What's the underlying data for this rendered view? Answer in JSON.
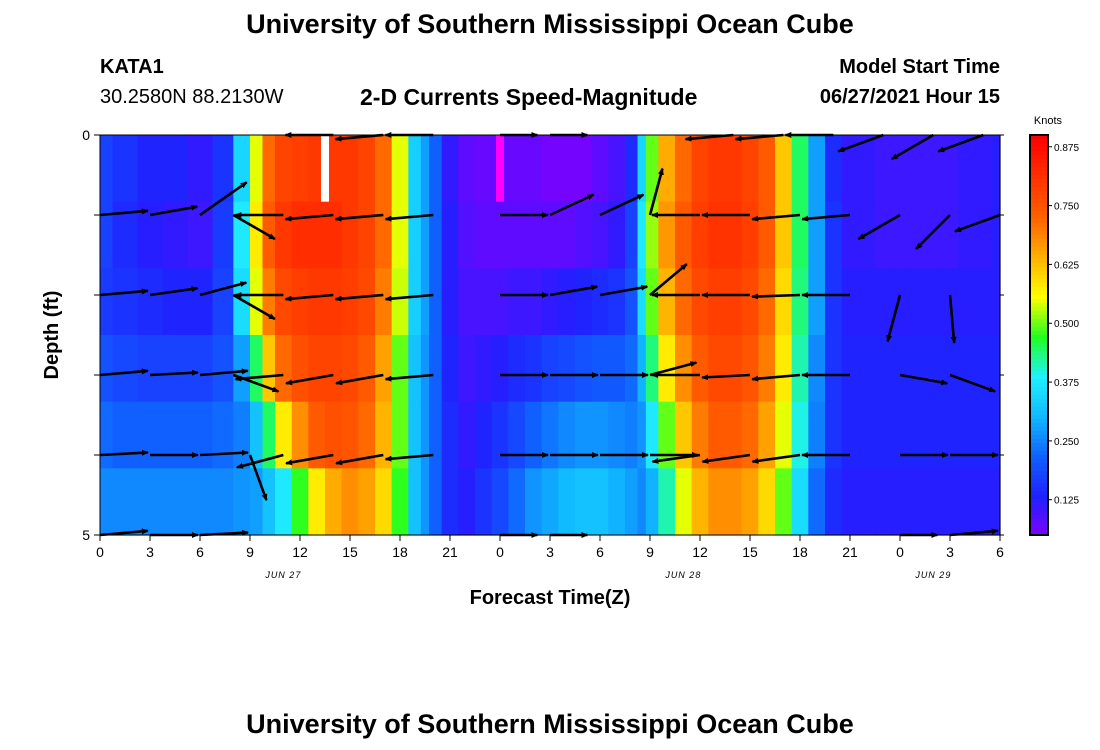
{
  "header": {
    "title": "University of Southern Mississippi Ocean Cube",
    "station_id": "KATA1",
    "coords": "30.2580N  88.2130W",
    "subtitle": "2-D Currents Speed-Magnitude",
    "model_label": "Model Start Time",
    "model_time": "06/27/2021 Hour 15"
  },
  "footer": {
    "title": "University of Southern Mississippi Ocean Cube"
  },
  "colors": {
    "colormap": [
      "#8000ff",
      "#2020ff",
      "#1060ff",
      "#10b8ff",
      "#20f0ff",
      "#20ff20",
      "#ffff00",
      "#ffb000",
      "#ff6000",
      "#ff3000",
      "#ff0000"
    ],
    "arrow": "#000000",
    "missing_white": "#ffffff",
    "missing_magenta": "#ff00ff"
  },
  "chart_data": {
    "type": "heatmap",
    "title": "2-D Currents Speed-Magnitude",
    "xlabel": "Forecast Time(Z)",
    "ylabel": "Depth (ft)",
    "units": "Knots",
    "xlim": [
      0,
      54
    ],
    "ylim": [
      0,
      5
    ],
    "x_tick_labels": [
      "0",
      "3",
      "6",
      "9",
      "12",
      "15",
      "18",
      "21",
      "0",
      "3",
      "6",
      "9",
      "12",
      "15",
      "18",
      "21",
      "0",
      "3",
      "6"
    ],
    "y_tick_labels": [
      "0",
      "5"
    ],
    "date_labels": [
      {
        "text": "JUN 27",
        "hour": 11
      },
      {
        "text": "JUN 28",
        "hour": 35
      },
      {
        "text": "JUN 29",
        "hour": 50
      }
    ],
    "colorbar_ticks": [
      "0.875",
      "0.750",
      "0.625",
      "0.500",
      "0.375",
      "0.250",
      "0.125"
    ],
    "colorbar_range": [
      0.05,
      0.9
    ],
    "hours": [
      0,
      1.5,
      3,
      4.5,
      6,
      7.5,
      8.5,
      9.5,
      10,
      11,
      12,
      13,
      14,
      15,
      16,
      17,
      18,
      19,
      19.5,
      20,
      21,
      22,
      23,
      24,
      25,
      26,
      27,
      28,
      29,
      30,
      31,
      32,
      32.5,
      33,
      34,
      35,
      36,
      37,
      38,
      39,
      40,
      41,
      42,
      43,
      44,
      45,
      46,
      47,
      48,
      49,
      50,
      51,
      52,
      53,
      54
    ],
    "depth_rows": [
      {
        "label": "row1",
        "speeds": [
          0.18,
          0.16,
          0.14,
          0.14,
          0.12,
          0.16,
          0.35,
          0.55,
          0.72,
          0.78,
          0.79,
          0.8,
          0.8,
          0.8,
          0.78,
          0.72,
          0.55,
          0.34,
          0.28,
          0.22,
          0.12,
          0.08,
          0.07,
          0.07,
          0.07,
          0.07,
          0.06,
          0.06,
          0.06,
          0.08,
          0.1,
          0.15,
          0.35,
          0.5,
          0.65,
          0.72,
          0.78,
          0.8,
          0.8,
          0.78,
          0.74,
          0.62,
          0.45,
          0.28,
          0.15,
          0.12,
          0.12,
          0.11,
          0.11,
          0.11,
          0.11,
          0.11,
          0.12,
          0.12,
          0.13
        ]
      },
      {
        "label": "row2",
        "speeds": [
          0.18,
          0.15,
          0.13,
          0.12,
          0.11,
          0.17,
          0.38,
          0.58,
          0.74,
          0.8,
          0.82,
          0.82,
          0.82,
          0.8,
          0.78,
          0.72,
          0.55,
          0.34,
          0.28,
          0.22,
          0.13,
          0.09,
          0.08,
          0.08,
          0.08,
          0.08,
          0.08,
          0.08,
          0.09,
          0.1,
          0.12,
          0.18,
          0.38,
          0.52,
          0.67,
          0.74,
          0.79,
          0.81,
          0.81,
          0.79,
          0.74,
          0.62,
          0.45,
          0.28,
          0.16,
          0.12,
          0.12,
          0.11,
          0.11,
          0.11,
          0.11,
          0.11,
          0.12,
          0.12,
          0.13
        ]
      },
      {
        "label": "row3",
        "speeds": [
          0.17,
          0.16,
          0.15,
          0.14,
          0.14,
          0.18,
          0.36,
          0.55,
          0.7,
          0.77,
          0.79,
          0.8,
          0.8,
          0.79,
          0.77,
          0.7,
          0.54,
          0.34,
          0.28,
          0.22,
          0.13,
          0.1,
          0.1,
          0.1,
          0.11,
          0.11,
          0.12,
          0.13,
          0.14,
          0.15,
          0.16,
          0.2,
          0.36,
          0.5,
          0.64,
          0.72,
          0.77,
          0.79,
          0.79,
          0.77,
          0.72,
          0.6,
          0.44,
          0.28,
          0.16,
          0.13,
          0.13,
          0.13,
          0.13,
          0.13,
          0.13,
          0.13,
          0.13,
          0.13,
          0.13
        ]
      },
      {
        "label": "row4",
        "speeds": [
          0.2,
          0.19,
          0.18,
          0.18,
          0.18,
          0.2,
          0.28,
          0.45,
          0.62,
          0.72,
          0.76,
          0.78,
          0.78,
          0.77,
          0.74,
          0.66,
          0.5,
          0.32,
          0.27,
          0.22,
          0.14,
          0.11,
          0.12,
          0.13,
          0.15,
          0.16,
          0.18,
          0.19,
          0.2,
          0.21,
          0.21,
          0.23,
          0.3,
          0.44,
          0.58,
          0.68,
          0.74,
          0.77,
          0.77,
          0.75,
          0.7,
          0.58,
          0.42,
          0.26,
          0.16,
          0.14,
          0.14,
          0.14,
          0.14,
          0.14,
          0.14,
          0.14,
          0.14,
          0.14,
          0.14
        ]
      },
      {
        "label": "row5",
        "speeds": [
          0.23,
          0.22,
          0.22,
          0.22,
          0.22,
          0.23,
          0.25,
          0.32,
          0.45,
          0.58,
          0.68,
          0.74,
          0.76,
          0.75,
          0.72,
          0.64,
          0.5,
          0.32,
          0.27,
          0.22,
          0.15,
          0.12,
          0.14,
          0.16,
          0.19,
          0.22,
          0.24,
          0.26,
          0.27,
          0.27,
          0.26,
          0.25,
          0.27,
          0.38,
          0.5,
          0.62,
          0.7,
          0.74,
          0.74,
          0.72,
          0.66,
          0.55,
          0.4,
          0.25,
          0.16,
          0.14,
          0.14,
          0.14,
          0.14,
          0.14,
          0.14,
          0.14,
          0.14,
          0.14,
          0.14
        ]
      },
      {
        "label": "row6",
        "speeds": [
          0.26,
          0.26,
          0.26,
          0.26,
          0.26,
          0.26,
          0.27,
          0.28,
          0.32,
          0.38,
          0.48,
          0.58,
          0.65,
          0.68,
          0.66,
          0.6,
          0.48,
          0.32,
          0.27,
          0.22,
          0.15,
          0.13,
          0.16,
          0.19,
          0.23,
          0.27,
          0.29,
          0.31,
          0.32,
          0.32,
          0.3,
          0.28,
          0.26,
          0.3,
          0.42,
          0.55,
          0.64,
          0.68,
          0.68,
          0.66,
          0.6,
          0.5,
          0.36,
          0.23,
          0.15,
          0.13,
          0.13,
          0.13,
          0.13,
          0.13,
          0.13,
          0.13,
          0.13,
          0.13,
          0.13
        ]
      }
    ],
    "missing_cells": [
      {
        "hour": 13.5,
        "row": 0,
        "color": "white"
      },
      {
        "hour": 24,
        "row": 0,
        "color": "magenta"
      }
    ],
    "vector_levels": [
      {
        "depth": 0,
        "arrows": [
          {
            "hour": 14,
            "angle": 180,
            "length": 0.32
          },
          {
            "hour": 17,
            "angle": 185,
            "length": 0.32
          },
          {
            "hour": 20,
            "angle": 180,
            "length": 0.32
          },
          {
            "hour": 24,
            "angle": 0,
            "length": 0.25
          },
          {
            "hour": 27,
            "angle": 0,
            "length": 0.25
          },
          {
            "hour": 38,
            "angle": 185,
            "length": 0.32
          },
          {
            "hour": 41,
            "angle": 185,
            "length": 0.32
          },
          {
            "hour": 44,
            "angle": 180,
            "length": 0.32
          },
          {
            "hour": 47,
            "angle": 200,
            "length": 0.32
          },
          {
            "hour": 50,
            "angle": 210,
            "length": 0.32
          },
          {
            "hour": 53,
            "angle": 200,
            "length": 0.32
          }
        ]
      },
      {
        "depth": 1,
        "arrows": [
          {
            "hour": 0,
            "angle": 5,
            "length": 0.32
          },
          {
            "hour": 3,
            "angle": 10,
            "length": 0.32
          },
          {
            "hour": 6,
            "angle": 35,
            "length": 0.38
          },
          {
            "hour": 8,
            "angle": 330,
            "length": 0.32
          },
          {
            "hour": 11,
            "angle": 180,
            "length": 0.32
          },
          {
            "hour": 14,
            "angle": 185,
            "length": 0.32
          },
          {
            "hour": 17,
            "angle": 185,
            "length": 0.32
          },
          {
            "hour": 20,
            "angle": 185,
            "length": 0.32
          },
          {
            "hour": 24,
            "angle": 0,
            "length": 0.32
          },
          {
            "hour": 27,
            "angle": 25,
            "length": 0.32
          },
          {
            "hour": 30,
            "angle": 25,
            "length": 0.32
          },
          {
            "hour": 33,
            "angle": 75,
            "length": 0.32
          },
          {
            "hour": 36,
            "angle": 180,
            "length": 0.32
          },
          {
            "hour": 39,
            "angle": 180,
            "length": 0.32
          },
          {
            "hour": 42,
            "angle": 185,
            "length": 0.32
          },
          {
            "hour": 45,
            "angle": 185,
            "length": 0.32
          },
          {
            "hour": 48,
            "angle": 210,
            "length": 0.32
          },
          {
            "hour": 51,
            "angle": 225,
            "length": 0.32
          },
          {
            "hour": 54,
            "angle": 200,
            "length": 0.32
          }
        ]
      },
      {
        "depth": 2,
        "arrows": [
          {
            "hour": 0,
            "angle": 5,
            "length": 0.32
          },
          {
            "hour": 3,
            "angle": 8,
            "length": 0.32
          },
          {
            "hour": 6,
            "angle": 15,
            "length": 0.32
          },
          {
            "hour": 8,
            "angle": 330,
            "length": 0.32
          },
          {
            "hour": 11,
            "angle": 180,
            "length": 0.32
          },
          {
            "hour": 14,
            "angle": 185,
            "length": 0.32
          },
          {
            "hour": 17,
            "angle": 185,
            "length": 0.32
          },
          {
            "hour": 20,
            "angle": 185,
            "length": 0.32
          },
          {
            "hour": 24,
            "angle": 0,
            "length": 0.32
          },
          {
            "hour": 27,
            "angle": 10,
            "length": 0.32
          },
          {
            "hour": 30,
            "angle": 10,
            "length": 0.32
          },
          {
            "hour": 33,
            "angle": 40,
            "length": 0.32
          },
          {
            "hour": 36,
            "angle": 180,
            "length": 0.32
          },
          {
            "hour": 39,
            "angle": 180,
            "length": 0.32
          },
          {
            "hour": 42,
            "angle": 182,
            "length": 0.32
          },
          {
            "hour": 45,
            "angle": 180,
            "length": 0.32
          },
          {
            "hour": 48,
            "angle": 255,
            "length": 0.32
          },
          {
            "hour": 51,
            "angle": 275,
            "length": 0.32
          }
        ]
      },
      {
        "depth": 3,
        "arrows": [
          {
            "hour": 0,
            "angle": 5,
            "length": 0.32
          },
          {
            "hour": 3,
            "angle": 3,
            "length": 0.32
          },
          {
            "hour": 6,
            "angle": 5,
            "length": 0.32
          },
          {
            "hour": 8,
            "angle": 340,
            "length": 0.32
          },
          {
            "hour": 11,
            "angle": 185,
            "length": 0.32
          },
          {
            "hour": 14,
            "angle": 190,
            "length": 0.32
          },
          {
            "hour": 17,
            "angle": 190,
            "length": 0.32
          },
          {
            "hour": 20,
            "angle": 185,
            "length": 0.32
          },
          {
            "hour": 24,
            "angle": 0,
            "length": 0.32
          },
          {
            "hour": 27,
            "angle": 0,
            "length": 0.32
          },
          {
            "hour": 30,
            "angle": 0,
            "length": 0.32
          },
          {
            "hour": 33,
            "angle": 15,
            "length": 0.32
          },
          {
            "hour": 36,
            "angle": 180,
            "length": 0.32
          },
          {
            "hour": 39,
            "angle": 183,
            "length": 0.32
          },
          {
            "hour": 42,
            "angle": 185,
            "length": 0.32
          },
          {
            "hour": 45,
            "angle": 180,
            "length": 0.32
          },
          {
            "hour": 48,
            "angle": 350,
            "length": 0.32
          },
          {
            "hour": 51,
            "angle": 340,
            "length": 0.32
          }
        ]
      },
      {
        "depth": 4,
        "arrows": [
          {
            "hour": 0,
            "angle": 3,
            "length": 0.32
          },
          {
            "hour": 3,
            "angle": 0,
            "length": 0.32
          },
          {
            "hour": 6,
            "angle": 3,
            "length": 0.32
          },
          {
            "hour": 9,
            "angle": 290,
            "length": 0.32
          },
          {
            "hour": 11,
            "angle": 195,
            "length": 0.32
          },
          {
            "hour": 14,
            "angle": 190,
            "length": 0.32
          },
          {
            "hour": 17,
            "angle": 190,
            "length": 0.32
          },
          {
            "hour": 20,
            "angle": 185,
            "length": 0.32
          },
          {
            "hour": 24,
            "angle": 0,
            "length": 0.32
          },
          {
            "hour": 27,
            "angle": 0,
            "length": 0.32
          },
          {
            "hour": 30,
            "angle": 0,
            "length": 0.32
          },
          {
            "hour": 33,
            "angle": 0,
            "length": 0.32
          },
          {
            "hour": 36,
            "angle": 188,
            "length": 0.32
          },
          {
            "hour": 39,
            "angle": 188,
            "length": 0.32
          },
          {
            "hour": 42,
            "angle": 188,
            "length": 0.32
          },
          {
            "hour": 45,
            "angle": 180,
            "length": 0.32
          },
          {
            "hour": 48,
            "angle": 0,
            "length": 0.32
          },
          {
            "hour": 51,
            "angle": 0,
            "length": 0.32
          }
        ]
      },
      {
        "depth": 5,
        "arrows": [
          {
            "hour": 0,
            "angle": 5,
            "length": 0.32
          },
          {
            "hour": 3,
            "angle": 0,
            "length": 0.32
          },
          {
            "hour": 6,
            "angle": 3,
            "length": 0.32
          },
          {
            "hour": 24,
            "angle": 0,
            "length": 0.25
          },
          {
            "hour": 27,
            "angle": 0,
            "length": 0.25
          },
          {
            "hour": 48,
            "angle": 0,
            "length": 0.25
          },
          {
            "hour": 51,
            "angle": 5,
            "length": 0.32
          }
        ]
      }
    ]
  }
}
